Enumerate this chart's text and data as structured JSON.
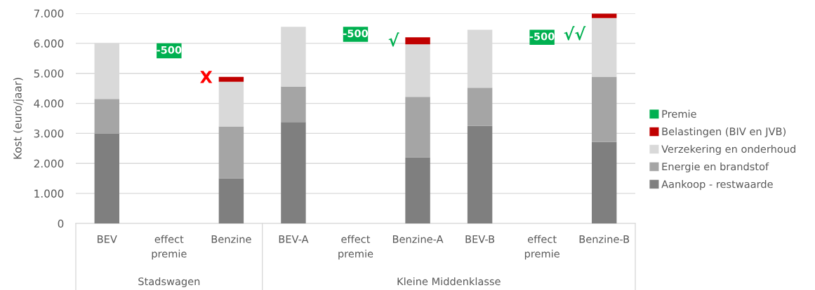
{
  "chart_data": {
    "type": "bar",
    "stacked": true,
    "ylabel": "Kost (euro/jaar)",
    "categories": [
      "BEV",
      "effect\npremie",
      "Benzine",
      "BEV-A",
      "effect\npremie",
      "Benzine-A",
      "BEV-B",
      "effect\npremie",
      "Benzine-B"
    ],
    "series": [
      {
        "name": "Aankoop - restwaarde",
        "color": "#7f7f7f",
        "values": [
          3000,
          null,
          1500,
          3380,
          null,
          2200,
          3250,
          null,
          2720
        ]
      },
      {
        "name": "Energie en brandstof",
        "color": "#a5a5a5",
        "values": [
          1150,
          null,
          1730,
          1180,
          null,
          2020,
          1270,
          null,
          2170
        ]
      },
      {
        "name": "Verzekering en onderhoud",
        "color": "#d9d9d9",
        "values": [
          1850,
          null,
          1490,
          1990,
          null,
          1750,
          1930,
          null,
          1950
        ]
      },
      {
        "name": "Belastingen (BIV en JVB)",
        "color": "#c00000",
        "values": [
          null,
          null,
          160,
          null,
          null,
          230,
          null,
          null,
          150
        ]
      },
      {
        "name": "Premie",
        "color": "#00b050",
        "values": [
          null,
          -500,
          null,
          null,
          -500,
          null,
          null,
          -500,
          null
        ],
        "base": [
          null,
          6000,
          null,
          null,
          6550,
          null,
          null,
          6450,
          null
        ],
        "value_labels": [
          null,
          "-500",
          null,
          null,
          "-500",
          null,
          null,
          "-500",
          null
        ]
      }
    ],
    "ylim": [
      0,
      7000
    ],
    "yticks": [
      {
        "value": 0,
        "label": "0"
      },
      {
        "value": 1000,
        "label": "1.000"
      },
      {
        "value": 2000,
        "label": "2.000"
      },
      {
        "value": 3000,
        "label": "3.000"
      },
      {
        "value": 4000,
        "label": "4.000"
      },
      {
        "value": 5000,
        "label": "5.000"
      },
      {
        "value": 6000,
        "label": "6.000"
      },
      {
        "value": 7000,
        "label": "7.000"
      }
    ],
    "grid": "y",
    "legend": "right",
    "annotations": [
      "X",
      "√",
      "√√",
      "Stadswagen",
      "Kleine Middenklasse"
    ]
  }
}
